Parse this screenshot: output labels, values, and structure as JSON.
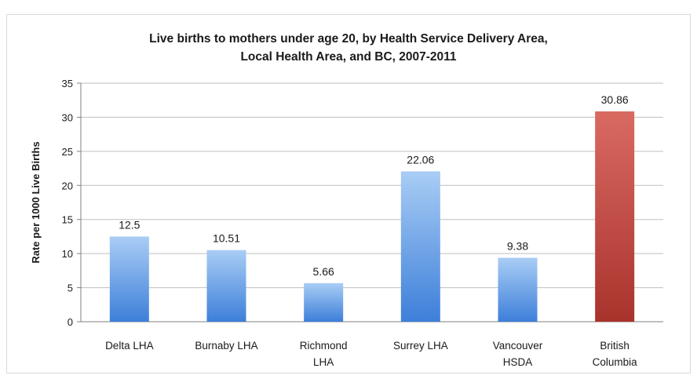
{
  "chart_data": {
    "type": "bar",
    "title_line1": "Live births to mothers under age 20, by Health Service Delivery Area,",
    "title_line2": "Local Health Area, and BC, 2007-2011",
    "ylabel": "Rate per 1000 Live Births",
    "xlabel": "",
    "ylim": [
      0,
      35
    ],
    "yticks": [
      0,
      5,
      10,
      15,
      20,
      25,
      30,
      35
    ],
    "grid": true,
    "legend": "none",
    "categories": [
      [
        "Delta LHA"
      ],
      [
        "Burnaby LHA"
      ],
      [
        "Richmond",
        "LHA"
      ],
      [
        "Surrey LHA"
      ],
      [
        "Vancouver",
        "HSDA"
      ],
      [
        "British",
        "Columbia"
      ]
    ],
    "values": [
      12.5,
      10.51,
      5.66,
      22.06,
      9.38,
      30.86
    ],
    "value_labels": [
      "12.5",
      "10.51",
      "5.66",
      "22.06",
      "9.38",
      "30.86"
    ],
    "colors": {
      "bar_light": "#a9cdf5",
      "bar_dark": "#3d7fd9",
      "highlight_light": "#d96a62",
      "highlight_dark": "#a8332c",
      "highlight_index": 5,
      "grid": "#bfbfbf",
      "axis": "#808080",
      "text": "#1a1a1a"
    }
  }
}
